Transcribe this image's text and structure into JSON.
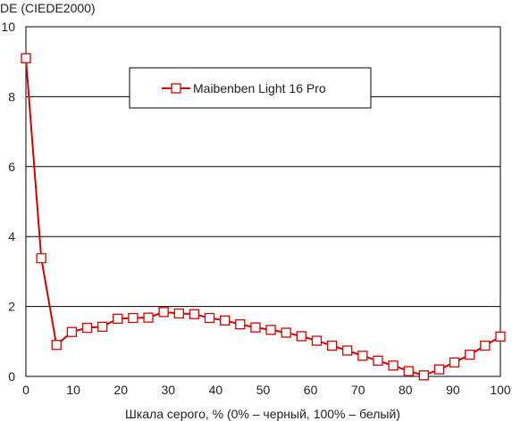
{
  "chart_data": {
    "type": "line",
    "title": "",
    "ylabel": "DE (CIEDE2000)",
    "xlabel": "Шкала серого, % (0% – черный, 100% – белый)",
    "xlim": [
      0,
      100
    ],
    "ylim": [
      0,
      10
    ],
    "xticks": [
      0,
      10,
      20,
      30,
      40,
      50,
      60,
      70,
      80,
      90,
      100
    ],
    "yticks": [
      0,
      2,
      4,
      6,
      8,
      10
    ],
    "grid": "horizontal",
    "legend_position": "top-center",
    "series": [
      {
        "name": "Maibenben Light 16 Pro",
        "color": "#d40000",
        "marker": "square-open",
        "x": [
          0,
          3.23,
          6.45,
          9.68,
          12.9,
          16.13,
          19.35,
          22.58,
          25.81,
          29.03,
          32.26,
          35.48,
          38.71,
          41.94,
          45.16,
          48.39,
          51.61,
          54.84,
          58.06,
          61.29,
          64.52,
          67.74,
          70.97,
          74.19,
          77.42,
          80.65,
          83.87,
          87.1,
          90.32,
          93.55,
          96.77,
          100
        ],
        "y": [
          9.1,
          3.38,
          0.9,
          1.27,
          1.39,
          1.42,
          1.65,
          1.67,
          1.68,
          1.84,
          1.8,
          1.78,
          1.67,
          1.6,
          1.49,
          1.4,
          1.33,
          1.25,
          1.15,
          1.02,
          0.88,
          0.74,
          0.59,
          0.45,
          0.31,
          0.15,
          0.03,
          0.2,
          0.4,
          0.62,
          0.88,
          1.14
        ]
      }
    ]
  }
}
